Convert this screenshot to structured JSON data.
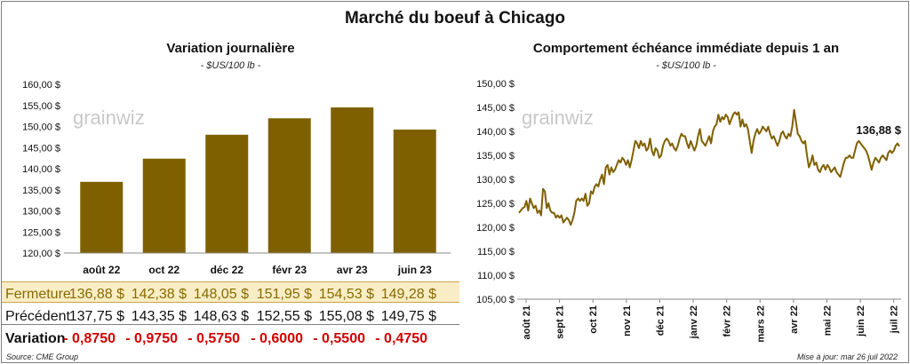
{
  "title": "Marché du boeuf à Chicago",
  "left": {
    "subtitle": "Variation journalière",
    "unit": "- $US/100 lb -",
    "watermark": "grainwiz",
    "y_ticks": [
      "160,00 $",
      "155,00 $",
      "150,00 $",
      "145,00 $",
      "140,00 $",
      "135,00 $",
      "130,00 $",
      "125,00 $",
      "120,00 $"
    ]
  },
  "right": {
    "subtitle": "Comportement  échéance immédiate depuis 1 an",
    "unit": "- $US/100 lb -",
    "watermark": "grainwiz",
    "last_label": "136,88 $",
    "y_ticks": [
      "150,00 $",
      "145,00 $",
      "140,00 $",
      "135,00 $",
      "130,00 $",
      "125,00 $",
      "120,00 $",
      "115,00 $",
      "110,00 $",
      "105,00 $"
    ],
    "x_ticks": [
      "août 21",
      "sept 21",
      "oct 21",
      "nov 21",
      "déc 21",
      "janv 22",
      "févr 22",
      "mars 22",
      "avr 22",
      "mai 22",
      "juin 22",
      "juil 22"
    ]
  },
  "table": {
    "rows": [
      {
        "label": "Fermeture",
        "values": [
          "136,88  $",
          "142,38  $",
          "148,05  $",
          "151,95  $",
          "154,53  $",
          "149,28  $"
        ]
      },
      {
        "label": "Précédent",
        "values": [
          "137,75  $",
          "143,35  $",
          "148,63  $",
          "152,55  $",
          "155,08  $",
          "149,75  $"
        ]
      },
      {
        "label": "Variation",
        "values": [
          "- 0,8750",
          "- 0,9750",
          "- 0,5750",
          "- 0,6000",
          "- 0,5500",
          "- 0,4750"
        ]
      }
    ]
  },
  "footer": {
    "source": "Source: CME Group",
    "updated": "Mise à jour: mar 26 juil 2022"
  },
  "colors": {
    "bar": "#7f6000",
    "line": "#7f6000",
    "close_bg": "#f8edc4",
    "negative": "#d40000"
  },
  "chart_data": [
    {
      "type": "bar",
      "categories": [
        "août 22",
        "oct 22",
        "déc 22",
        "févr 23",
        "avr 23",
        "juin 23"
      ],
      "values": [
        136.88,
        142.38,
        148.05,
        151.95,
        154.53,
        149.28
      ],
      "ylim": [
        120,
        160
      ],
      "grid": false
    },
    {
      "type": "line",
      "x_labels": [
        "août 21",
        "sept 21",
        "oct 21",
        "nov 21",
        "déc 21",
        "janv 22",
        "févr 22",
        "mars 22",
        "avr 22",
        "mai 22",
        "juin 22",
        "juil 22"
      ],
      "values": [
        123.0,
        123.5,
        124.0,
        124.2,
        125.5,
        123.5,
        126.0,
        125.0,
        124.0,
        124.5,
        123.0,
        123.5,
        122.5,
        128.0,
        127.5,
        124.0,
        125.0,
        123.5,
        123.0,
        123.0,
        122.0,
        122.5,
        122.0,
        122.5,
        121.0,
        121.5,
        122.0,
        121.5,
        120.5,
        121.5,
        123.0,
        125.5,
        126.0,
        125.5,
        126.0,
        125.5,
        127.0,
        124.5,
        125.0,
        127.5,
        127.0,
        128.5,
        129.0,
        128.5,
        130.0,
        131.0,
        129.0,
        132.5,
        133.0,
        131.0,
        132.5,
        131.5,
        132.0,
        133.0,
        134.0,
        133.5,
        134.5,
        134.0,
        133.0,
        134.0,
        132.5,
        134.0,
        136.0,
        138.0,
        137.5,
        136.5,
        138.0,
        137.0,
        137.5,
        136.0,
        136.5,
        138.5,
        136.0,
        135.0,
        136.5,
        136.0,
        134.5,
        135.0,
        137.0,
        138.0,
        138.5,
        138.0,
        137.0,
        137.5,
        136.5,
        136.0,
        137.0,
        138.5,
        139.5,
        139.0,
        139.0,
        137.5,
        136.5,
        138.0,
        137.0,
        136.0,
        137.0,
        139.0,
        140.5,
        138.0,
        137.5,
        137.0,
        138.0,
        139.0,
        137.5,
        140.0,
        141.0,
        141.5,
        143.5,
        142.0,
        143.0,
        142.5,
        143.5,
        143.0,
        141.5,
        142.5,
        143.5,
        144.0,
        143.5,
        144.0,
        141.0,
        142.5,
        141.0,
        141.5,
        140.5,
        138.0,
        135.5,
        138.0,
        139.5,
        140.5,
        139.5,
        140.0,
        141.0,
        140.5,
        140.0,
        141.0,
        139.5,
        138.5,
        139.0,
        138.0,
        137.0,
        138.0,
        139.5,
        140.0,
        139.0,
        138.5,
        139.5,
        139.0,
        141.0,
        144.5,
        142.0,
        139.5,
        139.0,
        138.0,
        137.5,
        138.0,
        135.0,
        132.5,
        133.5,
        135.0,
        133.0,
        133.5,
        132.0,
        131.5,
        132.5,
        133.0,
        132.0,
        133.0,
        132.5,
        131.5,
        132.0,
        132.5,
        131.5,
        131.0,
        130.5,
        132.0,
        133.5,
        134.5,
        134.5,
        135.0,
        134.5,
        134.5,
        136.0,
        137.5,
        138.0,
        137.5,
        137.0,
        136.5,
        136.0,
        135.0,
        133.5,
        132.0,
        133.5,
        134.5,
        134.0,
        133.5,
        134.5,
        135.0,
        134.5,
        134.0,
        135.5,
        136.0,
        135.5,
        136.0,
        137.0,
        137.5,
        136.88
      ],
      "ylim": [
        105,
        150
      ],
      "grid": false
    }
  ]
}
